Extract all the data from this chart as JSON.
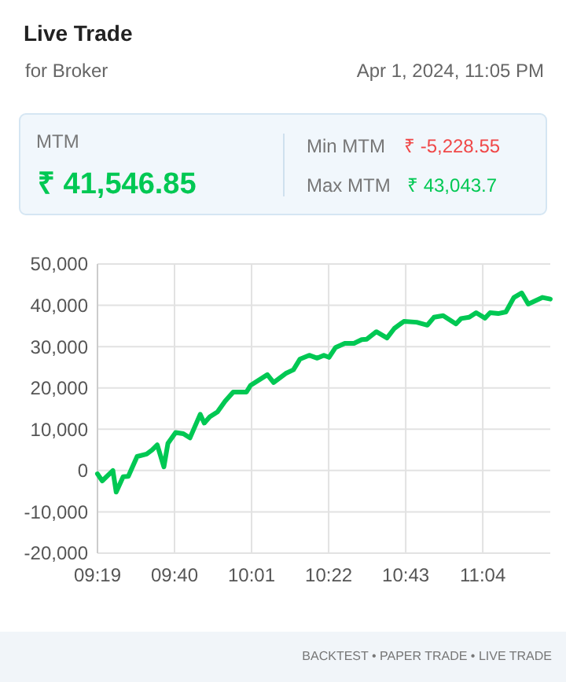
{
  "chart_data": {
    "type": "line",
    "title": "Live Trade",
    "subtitle": "for Broker",
    "annotations": [
      "Apr 1, 2024, 11:05 PM",
      "MTM",
      "₹ 41,546.85",
      "Min MTM",
      "₹ -5,228.55",
      "Max MTM",
      "₹ 43,043.7",
      "BACKTEST • PAPER TRADE • LIVE TRADE"
    ],
    "x": [
      9.3167,
      9.3383,
      9.3867,
      9.4017,
      9.4333,
      9.4567,
      9.4967,
      9.54,
      9.565,
      9.5883,
      9.6183,
      9.6367,
      9.6717,
      9.7067,
      9.7367,
      9.7833,
      9.8017,
      9.8267,
      9.8617,
      9.8967,
      9.9333,
      9.9933,
      10.0117,
      10.0883,
      10.1167,
      10.1717,
      10.2067,
      10.2367,
      10.2783,
      10.315,
      10.345,
      10.3683,
      10.3983,
      10.44,
      10.4817,
      10.5167,
      10.54,
      10.5833,
      10.6317,
      10.665,
      10.7083,
      10.7667,
      10.815,
      10.845,
      10.8867,
      10.945,
      10.9683,
      11.005,
      11.0367,
      11.0767,
      11.1,
      11.1367,
      11.1717,
      11.2083,
      11.2433,
      11.2733,
      11.3383,
      11.3733
    ],
    "series": [
      {
        "color": "#00c853",
        "values": [
          -800,
          -2500,
          0,
          -5200,
          -1500,
          -1400,
          3400,
          4000,
          5000,
          6200,
          900,
          6600,
          9200,
          8900,
          7900,
          13600,
          11500,
          13000,
          14200,
          16800,
          19000,
          19000,
          20600,
          23200,
          21300,
          23500,
          24400,
          27000,
          27900,
          27200,
          27900,
          27400,
          29800,
          30800,
          30800,
          31700,
          31800,
          33600,
          32100,
          34400,
          36100,
          35900,
          35200,
          37100,
          37500,
          35500,
          36800,
          37100,
          38200,
          36900,
          38200,
          38000,
          38400,
          41900,
          43000,
          40300,
          41900,
          41500
        ]
      }
    ],
    "xlim": [
      9.3167,
      11.3733
    ],
    "xticks": [
      {
        "value": 9.3167,
        "label": "09:19"
      },
      {
        "value": 9.6667,
        "label": "09:40"
      },
      {
        "value": 10.0167,
        "label": "10:01"
      },
      {
        "value": 10.3667,
        "label": "10:22"
      },
      {
        "value": 10.7167,
        "label": "10:43"
      },
      {
        "value": 11.0667,
        "label": "11:04"
      }
    ],
    "ylim": [
      -20000,
      50000
    ],
    "yticks": [
      {
        "value": -20000,
        "label": "-20,000"
      },
      {
        "value": -10000,
        "label": "-10,000"
      },
      {
        "value": 0,
        "label": "0"
      },
      {
        "value": 10000,
        "label": "10,000"
      },
      {
        "value": 20000,
        "label": "20,000"
      },
      {
        "value": 30000,
        "label": "30,000"
      },
      {
        "value": 40000,
        "label": "40,000"
      },
      {
        "value": 50000,
        "label": "50,000"
      }
    ],
    "grid": true,
    "marker": "none",
    "line_style": "solid"
  }
}
